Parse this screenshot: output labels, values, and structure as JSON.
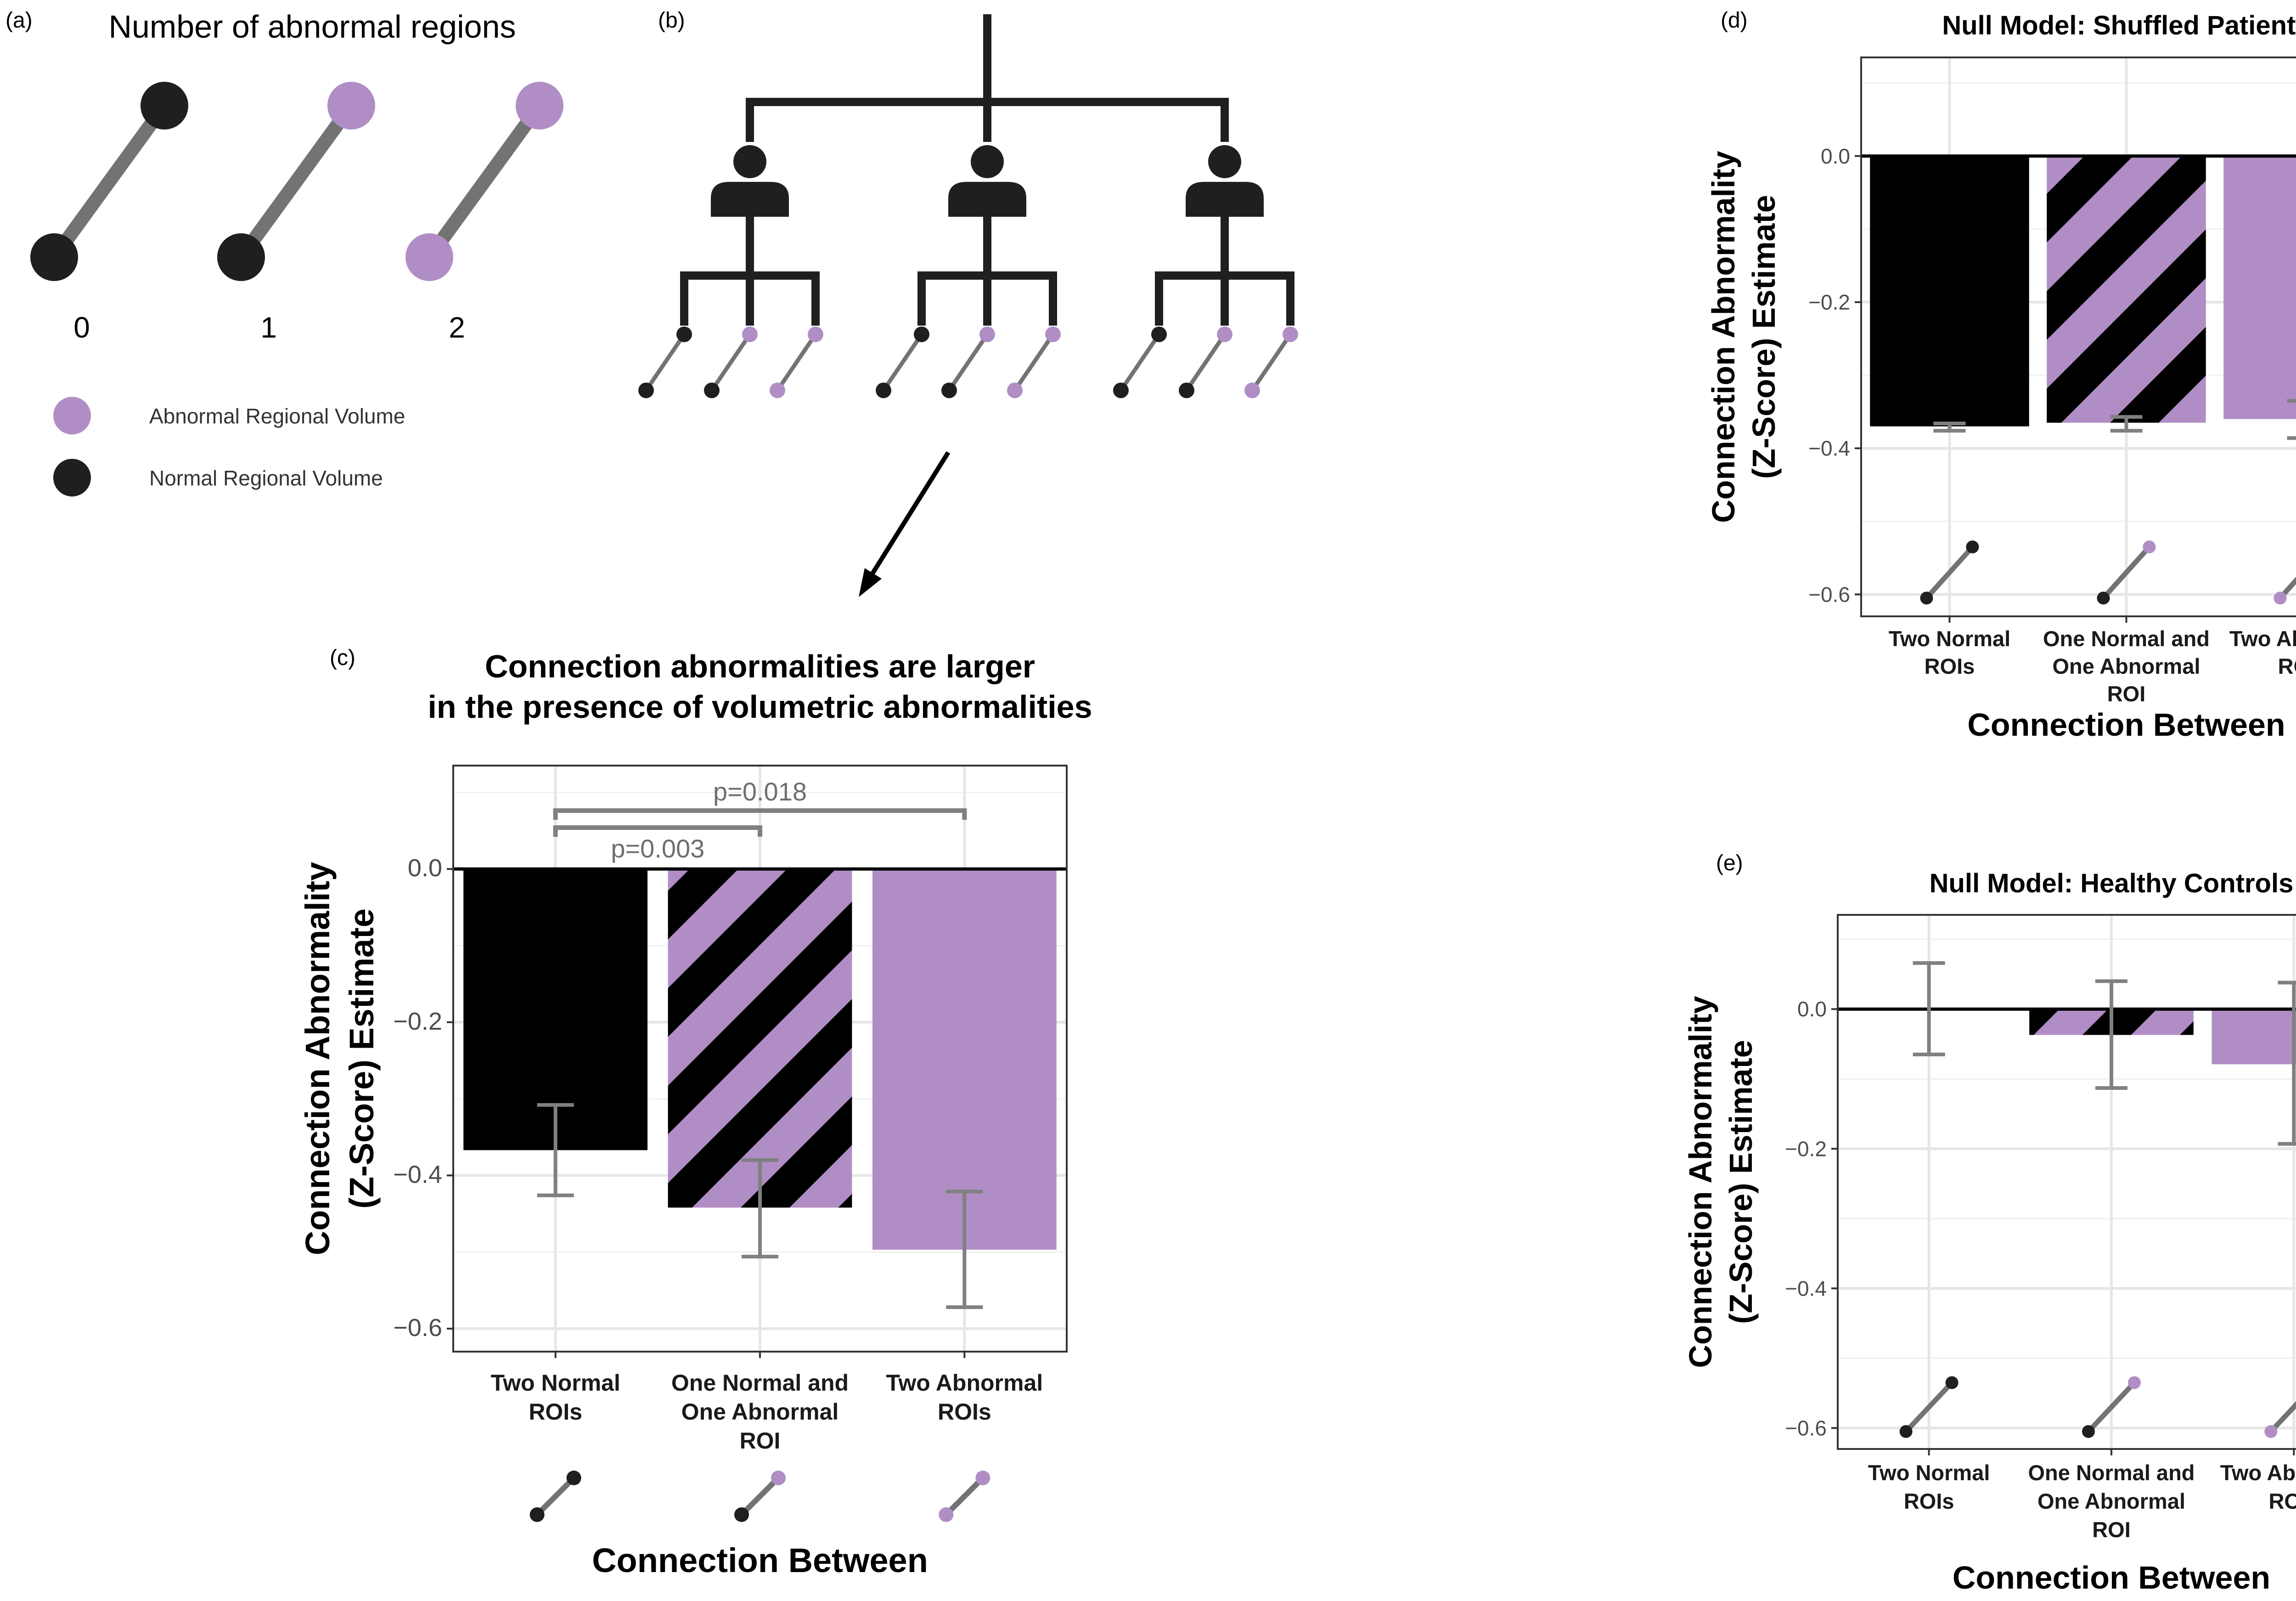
{
  "colors": {
    "normal": "#1f1f1f",
    "abnormal": "#b08ec5",
    "edge": "#737373",
    "error_bar": "#808080",
    "grid": "#e6e6e6",
    "zero_line": "#000000",
    "tree": "#1f1f1f"
  },
  "panel_a": {
    "label": "(a)",
    "title": "Number of abnormal regions",
    "counts": [
      "0",
      "1",
      "2"
    ],
    "legend": [
      {
        "label": "Abnormal Regional Volume",
        "color": "abnormal"
      },
      {
        "label": "Normal Regional Volume",
        "color": "normal"
      }
    ]
  },
  "panel_b": {
    "label": "(b)",
    "icons": [
      "person-icon",
      "connection-type-icon",
      "arrow-icon"
    ]
  },
  "chart_data": [
    {
      "panel": "(c)",
      "type": "bar",
      "title": "Connection abnormalities are larger\nin the presence of volumetric abnormalities",
      "categories": [
        "Two Normal\nROIs",
        "One Normal and\nOne Abnormal\nROI",
        "Two Abnormal\nROIs"
      ],
      "values": [
        -0.367,
        -0.442,
        -0.497
      ],
      "error_low": [
        -0.426,
        -0.506,
        -0.572
      ],
      "error_high": [
        -0.308,
        -0.38,
        -0.421
      ],
      "fills": [
        "normal",
        "striped",
        "abnormal"
      ],
      "xlabel": "Connection Between",
      "ylabel": "Connection Abnormality\n(Z-Score) Estimate",
      "yticks": [
        0.0,
        -0.2,
        -0.4,
        -0.6
      ],
      "ytick_labels": [
        "0.0",
        "−0.2",
        "−0.4",
        "−0.6"
      ],
      "ylim": [
        -0.63,
        0.135
      ],
      "annotations": [
        {
          "text": "p=0.003",
          "from": 0,
          "to": 1
        },
        {
          "text": "p=0.018",
          "from": 0,
          "to": 2
        }
      ],
      "grid": true
    },
    {
      "panel": "(d)",
      "type": "bar",
      "title": "Null Model: Shuffled Patients",
      "categories": [
        "Two Normal\nROIs",
        "One Normal and\nOne Abnormal\nROI",
        "Two Abnormal\nROIs"
      ],
      "values": [
        -0.37,
        -0.365,
        -0.36
      ],
      "error_low": [
        -0.376,
        -0.376,
        -0.386
      ],
      "error_high": [
        -0.366,
        -0.357,
        -0.335
      ],
      "fills": [
        "normal",
        "striped",
        "abnormal"
      ],
      "xlabel": "Connection Between",
      "ylabel": "Connection Abnormality\n(Z-Score) Estimate",
      "yticks": [
        0.0,
        -0.2,
        -0.4,
        -0.6
      ],
      "ytick_labels": [
        "0.0",
        "−0.2",
        "−0.4",
        "−0.6"
      ],
      "ylim": [
        -0.63,
        0.135
      ],
      "grid": true
    },
    {
      "panel": "(e)",
      "type": "bar",
      "title": "Null Model: Healthy Controls",
      "categories": [
        "Two Normal\nROIs",
        "One Normal and\nOne Abnormal\nROI",
        "Two Abnormal\nROIs"
      ],
      "values": [
        0.0,
        -0.037,
        -0.079
      ],
      "error_low": [
        -0.065,
        -0.113,
        -0.193
      ],
      "error_high": [
        0.066,
        0.04,
        0.038
      ],
      "fills": [
        "normal",
        "striped",
        "abnormal"
      ],
      "xlabel": "Connection Between",
      "ylabel": "Connection Abnormality\n(Z-Score) Estimate",
      "yticks": [
        0.0,
        -0.2,
        -0.4,
        -0.6
      ],
      "ytick_labels": [
        "0.0",
        "−0.2",
        "−0.4",
        "−0.6"
      ],
      "ylim": [
        -0.63,
        0.135
      ],
      "grid": true
    }
  ]
}
